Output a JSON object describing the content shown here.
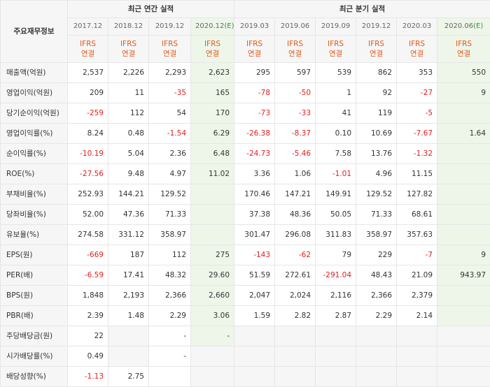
{
  "header": {
    "corner": "주요재무정보",
    "annual_group": "최근 연간 실적",
    "quarter_group": "최근 분기 실적",
    "periods": [
      {
        "label": "2017.12",
        "est": false
      },
      {
        "label": "2018.12",
        "est": false
      },
      {
        "label": "2019.12",
        "est": false
      },
      {
        "label": "2020.12",
        "est": true,
        "est_mark": "(E)"
      },
      {
        "label": "2019.03",
        "est": false
      },
      {
        "label": "2019.06",
        "est": false
      },
      {
        "label": "2019.09",
        "est": false
      },
      {
        "label": "2019.12",
        "est": false
      },
      {
        "label": "2020.03",
        "est": false
      },
      {
        "label": "2020.06",
        "est": true,
        "est_mark": "(E)"
      }
    ],
    "ifrs_top": "IFRS",
    "ifrs_bottom": "연결"
  },
  "rows": [
    {
      "label": "매출액(억원)",
      "group": 1,
      "values": [
        "2,537",
        "2,226",
        "2,293",
        "2,623",
        "295",
        "597",
        "539",
        "862",
        "353",
        "550"
      ]
    },
    {
      "label": "영업이익(억원)",
      "group": 1,
      "values": [
        "209",
        "11",
        "-35",
        "165",
        "-78",
        "-50",
        "1",
        "92",
        "-27",
        "9"
      ]
    },
    {
      "label": "당기순이익(억원)",
      "group": 1,
      "values": [
        "-259",
        "112",
        "54",
        "170",
        "-73",
        "-33",
        "41",
        "119",
        "-5",
        ""
      ]
    },
    {
      "label": "영업이익률(%)",
      "group": 2,
      "values": [
        "8.24",
        "0.48",
        "-1.54",
        "6.29",
        "-26.38",
        "-8.37",
        "0.10",
        "10.69",
        "-7.67",
        "1.64"
      ]
    },
    {
      "label": "순이익률(%)",
      "group": 2,
      "values": [
        "-10.19",
        "5.04",
        "2.36",
        "6.48",
        "-24.73",
        "-5.46",
        "7.58",
        "13.76",
        "-1.32",
        ""
      ]
    },
    {
      "label": "ROE(%)",
      "group": 2,
      "values": [
        "-27.56",
        "9.48",
        "4.97",
        "11.02",
        "3.36",
        "1.06",
        "-1.01",
        "4.96",
        "11.15",
        ""
      ]
    },
    {
      "label": "부채비율(%)",
      "group": 3,
      "values": [
        "252.93",
        "144.21",
        "129.52",
        "",
        "170.46",
        "147.21",
        "149.91",
        "129.52",
        "127.82",
        ""
      ]
    },
    {
      "label": "당좌비율(%)",
      "group": 3,
      "values": [
        "52.00",
        "47.36",
        "71.33",
        "",
        "37.38",
        "48.36",
        "50.05",
        "71.33",
        "68.61",
        ""
      ]
    },
    {
      "label": "유보율(%)",
      "group": 3,
      "values": [
        "274.58",
        "331.12",
        "358.97",
        "",
        "301.47",
        "296.08",
        "311.83",
        "358.97",
        "357.63",
        ""
      ]
    },
    {
      "label": "EPS(원)",
      "group": 4,
      "values": [
        "-669",
        "187",
        "112",
        "275",
        "-143",
        "-62",
        "79",
        "229",
        "-7",
        "9"
      ]
    },
    {
      "label": "PER(배)",
      "group": 4,
      "values": [
        "-6.59",
        "17.41",
        "48.32",
        "29.60",
        "51.59",
        "272.61",
        "-291.04",
        "48.43",
        "21.09",
        "943.97"
      ]
    },
    {
      "label": "BPS(원)",
      "group": 4,
      "values": [
        "1,848",
        "2,193",
        "2,366",
        "2,660",
        "2,047",
        "2,024",
        "2,116",
        "2,366",
        "2,379",
        ""
      ]
    },
    {
      "label": "PBR(배)",
      "group": 4,
      "values": [
        "2.39",
        "1.48",
        "2.29",
        "3.06",
        "1.59",
        "2.82",
        "2.87",
        "2.29",
        "2.14",
        ""
      ]
    },
    {
      "label": "주당배당금(원)",
      "group": 5,
      "values": [
        "22",
        "",
        "-",
        "-",
        "",
        "",
        "",
        "",
        "",
        ""
      ]
    },
    {
      "label": "시가배당률(%)",
      "group": 5,
      "values": [
        "0.49",
        "",
        "-",
        "",
        "",
        "",
        "",
        "",
        "",
        ""
      ]
    },
    {
      "label": "배당성향(%)",
      "group": 5,
      "values": [
        "-1.13",
        "2.75",
        "",
        "",
        "",
        "",
        "",
        "",
        "",
        ""
      ]
    }
  ]
}
